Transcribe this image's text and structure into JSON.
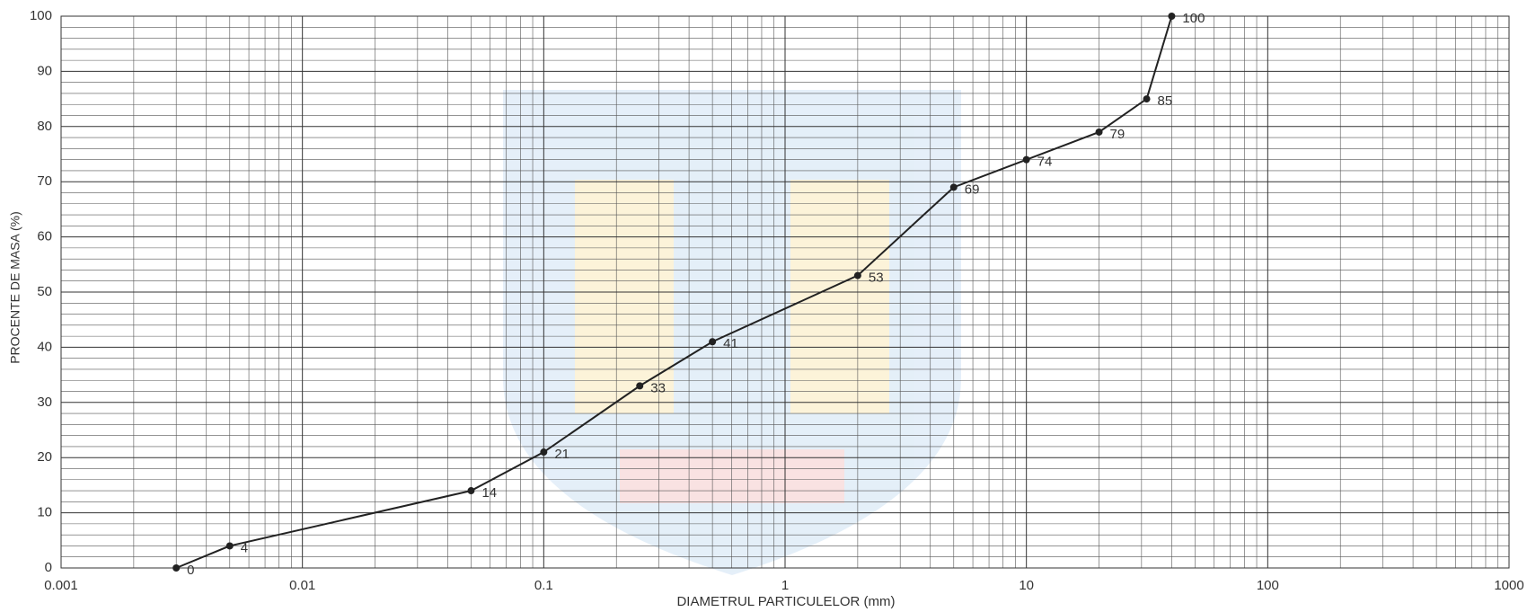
{
  "chart_data": {
    "type": "line",
    "x_label": "DIAMETRUL PARTICULELOR (mm)",
    "y_label": "PROCENTE DE MASA (%)",
    "x": [
      0.003,
      0.005,
      0.05,
      0.1,
      0.25,
      0.5,
      2,
      5,
      10,
      20,
      31.5,
      40
    ],
    "series": [
      {
        "color": "#222222",
        "values": [
          0,
          4,
          14,
          21,
          33,
          41,
          53,
          69,
          74,
          79,
          85,
          100
        ]
      }
    ],
    "xlim": [
      0.001,
      1000
    ],
    "xticks": [
      0.001,
      0.01,
      0.1,
      1,
      10,
      100,
      1000
    ],
    "x_log": true,
    "ylim": [
      0,
      100
    ],
    "yticks": [
      0,
      10,
      20,
      30,
      40,
      50,
      60,
      70,
      80,
      90,
      100
    ],
    "grid": true
  }
}
